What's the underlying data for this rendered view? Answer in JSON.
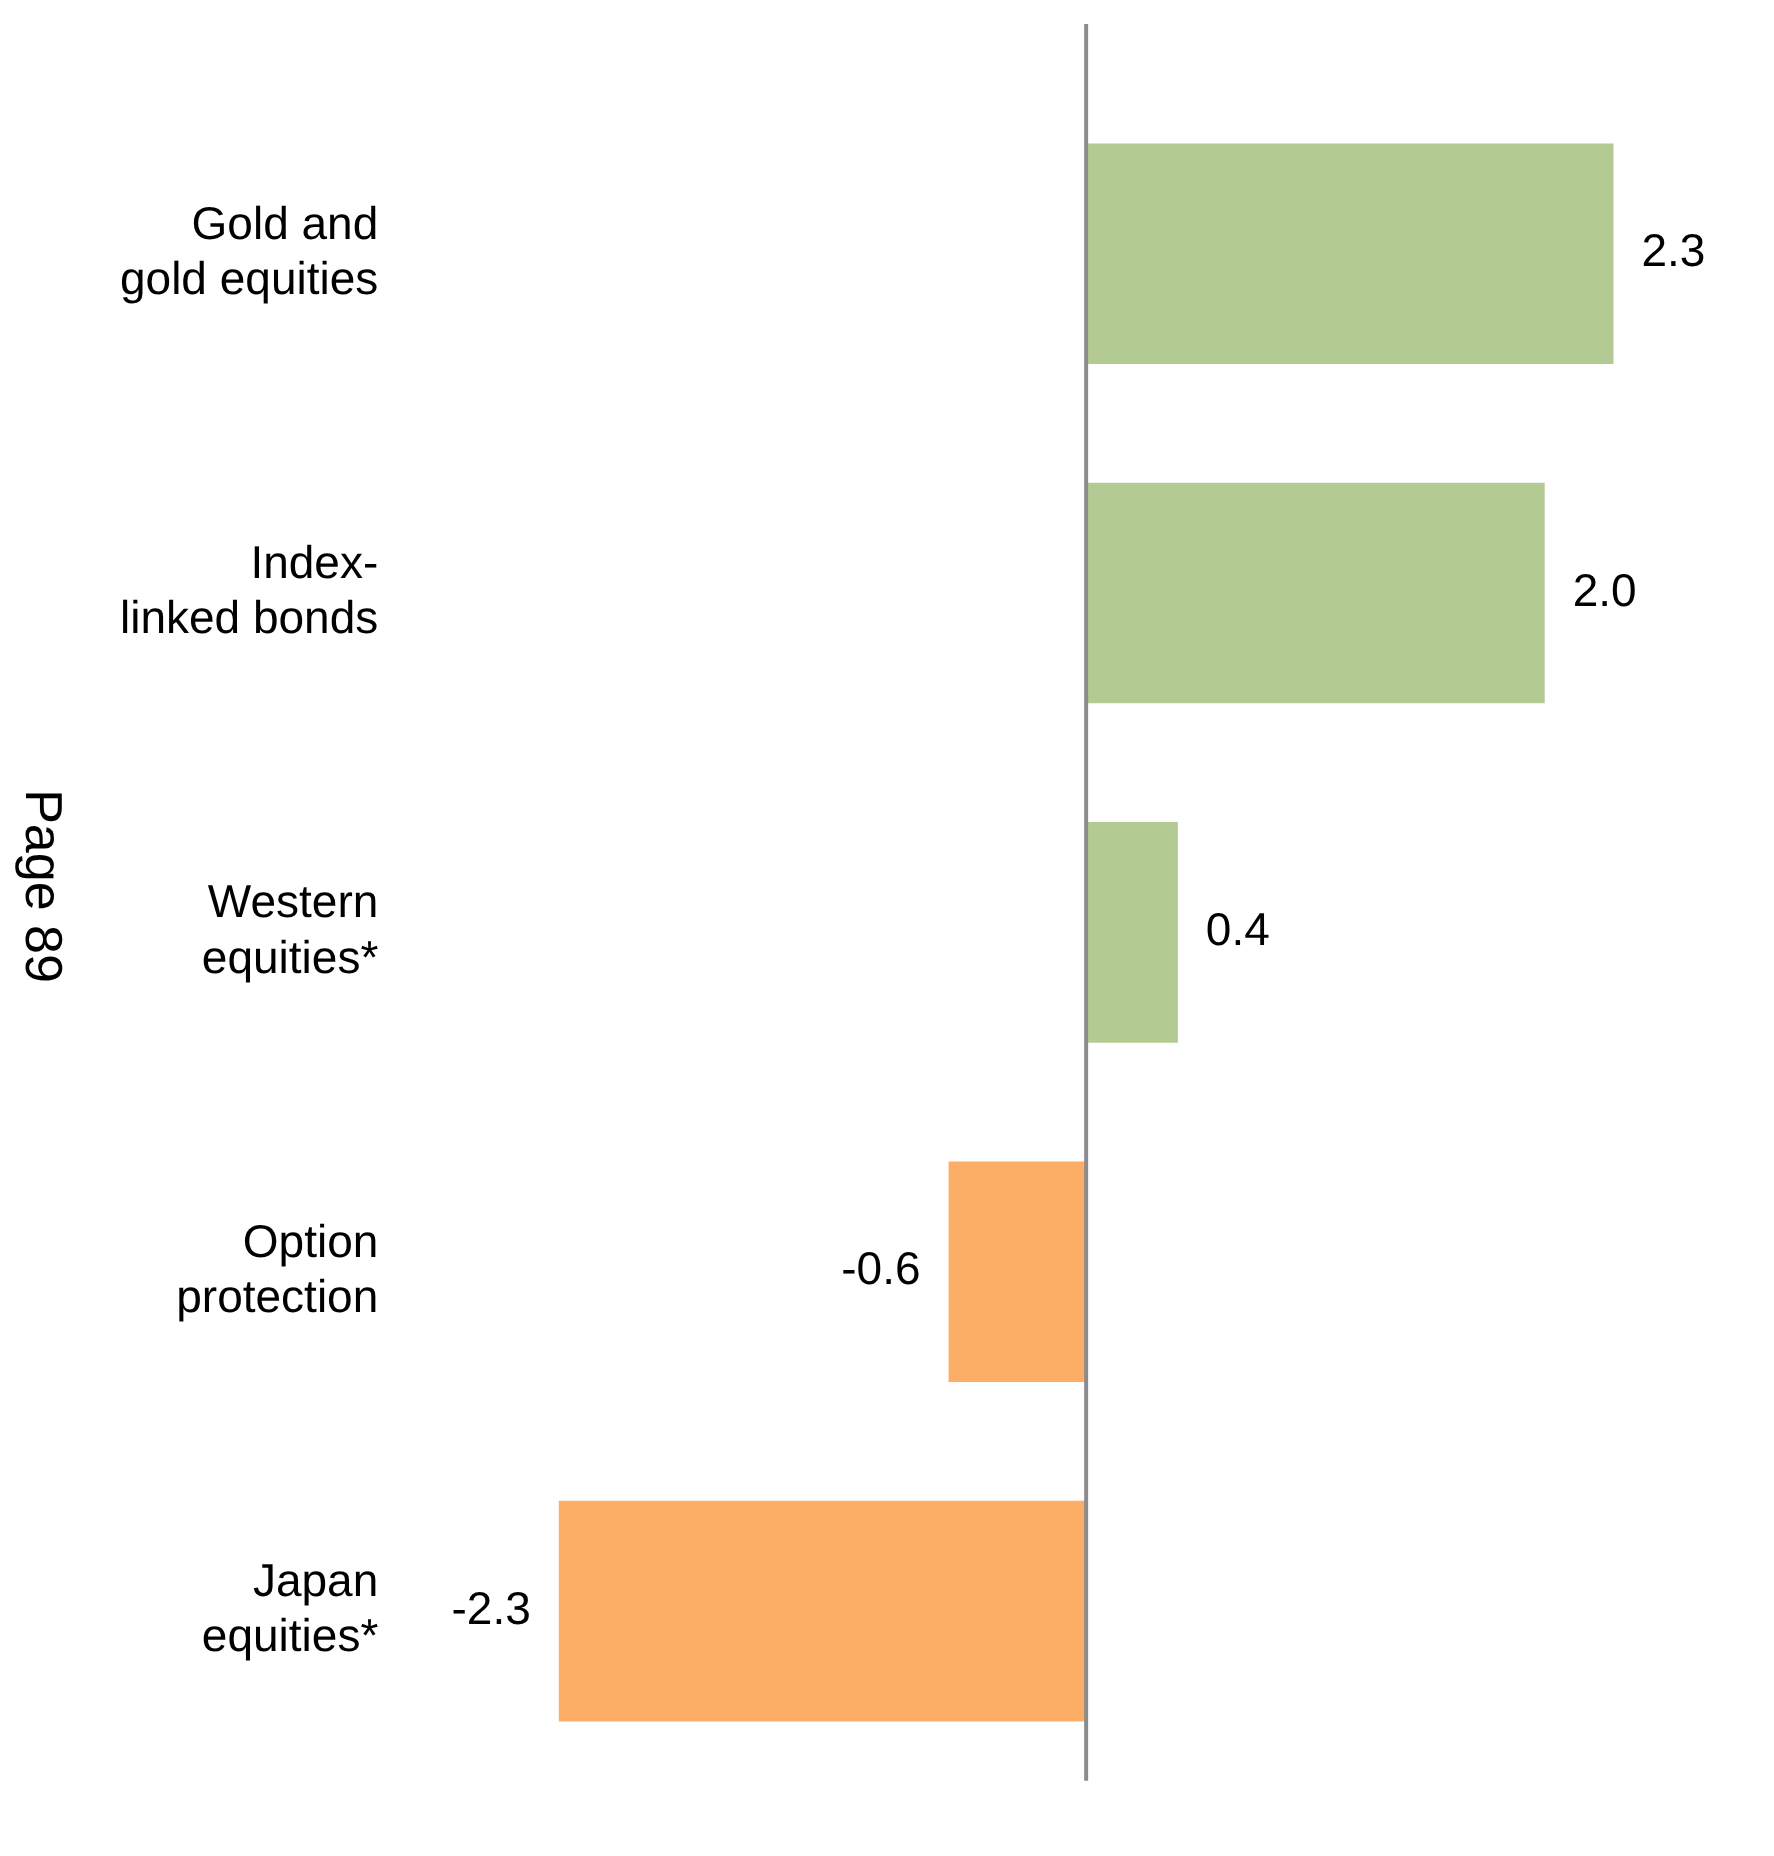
{
  "chart_data": {
    "type": "bar",
    "orientation": "horizontal",
    "categories": [
      "Gold and\ngold equities",
      "Index-\nlinked bonds",
      "Western\nequities*",
      "Option\nprotection",
      "Japan\nequities*"
    ],
    "values": [
      2.3,
      2.0,
      0.4,
      -0.6,
      -2.3
    ],
    "colors": [
      "#b3cb93",
      "#b3cb93",
      "#b3cb93",
      "#fcae66",
      "#fcae66"
    ],
    "value_labels": [
      "2.3",
      "2.0",
      "0.4",
      "-0.6",
      "-2.3"
    ],
    "tick_labels": "y",
    "grid": false,
    "legend": false,
    "annotations": [
      "Page 89"
    ]
  }
}
